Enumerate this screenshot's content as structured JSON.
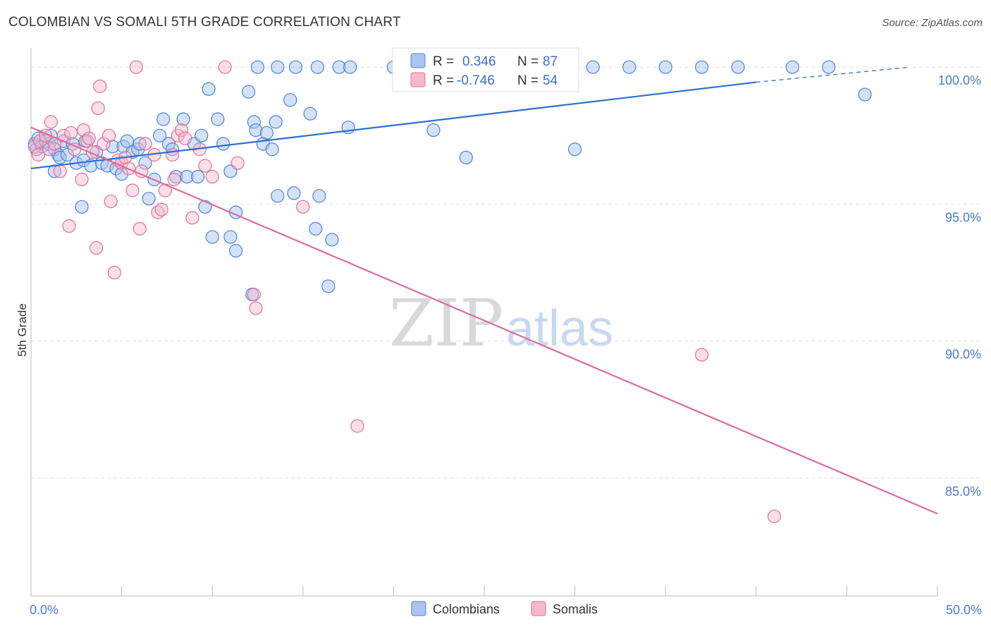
{
  "title": "COLOMBIAN VS SOMALI 5TH GRADE CORRELATION CHART",
  "source": "Source: ZipAtlas.com",
  "watermark": {
    "part1": "ZIP",
    "part2": "atlas"
  },
  "colors": {
    "blue": "#4a86d8",
    "blue_fill": "#a9c4ee",
    "blue_line": "#2f6fd0",
    "pink": "#e0709a",
    "pink_fill": "#f5b8cc",
    "pink_line": "#de6b98",
    "axis_label": "#4a7bd0",
    "grid": "#e2e2e2"
  },
  "legend": {
    "rows": [
      {
        "r_label": "R =",
        "r_value": "0.346",
        "n_label": "N =",
        "n_value": "87"
      },
      {
        "r_label": "R =",
        "r_value": "-0.746",
        "n_label": "N =",
        "n_value": "54"
      }
    ]
  },
  "bottom_legend": [
    "Colombians",
    "Somalis"
  ],
  "chart_data": {
    "type": "scatter",
    "title": "COLOMBIAN VS SOMALI 5TH GRADE CORRELATION CHART",
    "xlabel": "",
    "ylabel": "5th Grade",
    "xlim": [
      0,
      50
    ],
    "ylim": [
      80.7,
      100.7
    ],
    "x_tick_labels": [
      {
        "value": 0,
        "label": "0.0%"
      },
      {
        "value": 50,
        "label": "50.0%"
      }
    ],
    "y_tick_labels": [
      {
        "value": 100,
        "label": "100.0%"
      },
      {
        "value": 95,
        "label": "95.0%"
      },
      {
        "value": 90,
        "label": "90.0%"
      },
      {
        "value": 85,
        "label": "85.0%"
      }
    ],
    "x_minor_ticks": [
      0,
      5,
      10,
      15,
      20,
      25,
      30,
      35,
      40,
      45,
      50
    ],
    "series": [
      {
        "name": "Colombians",
        "r": 0.346,
        "n": 87,
        "trend": {
          "x0": 0,
          "y0": 96.3,
          "x1": 40,
          "y1": 99.45,
          "dash_to_x": 48.5,
          "dash_to_y": 100.0
        },
        "points": [
          [
            0.2,
            97.2
          ],
          [
            0.3,
            97.0
          ],
          [
            0.4,
            97.4
          ],
          [
            0.6,
            97.1
          ],
          [
            0.8,
            97.3
          ],
          [
            1.0,
            97.2
          ],
          [
            1.1,
            97.5
          ],
          [
            1.3,
            97.0
          ],
          [
            1.5,
            96.8
          ],
          [
            1.3,
            96.2
          ],
          [
            1.6,
            96.7
          ],
          [
            1.8,
            97.3
          ],
          [
            2.0,
            96.8
          ],
          [
            2.3,
            97.2
          ],
          [
            2.5,
            96.5
          ],
          [
            2.9,
            96.6
          ],
          [
            3.0,
            97.3
          ],
          [
            3.3,
            96.4
          ],
          [
            3.6,
            96.9
          ],
          [
            3.9,
            96.5
          ],
          [
            4.2,
            96.4
          ],
          [
            4.5,
            97.1
          ],
          [
            4.7,
            96.3
          ],
          [
            5.0,
            96.1
          ],
          [
            5.1,
            97.1
          ],
          [
            5.3,
            97.3
          ],
          [
            5.6,
            96.9
          ],
          [
            5.9,
            97.0
          ],
          [
            6.0,
            97.2
          ],
          [
            6.3,
            96.5
          ],
          [
            6.5,
            95.2
          ],
          [
            6.8,
            95.9
          ],
          [
            7.1,
            97.5
          ],
          [
            7.3,
            98.1
          ],
          [
            7.6,
            97.2
          ],
          [
            7.8,
            97.0
          ],
          [
            8.0,
            96.0
          ],
          [
            8.4,
            98.1
          ],
          [
            8.6,
            96.0
          ],
          [
            9.0,
            97.2
          ],
          [
            9.2,
            96.0
          ],
          [
            9.4,
            97.5
          ],
          [
            9.6,
            94.9
          ],
          [
            10.0,
            93.8
          ],
          [
            9.8,
            99.2
          ],
          [
            10.3,
            98.1
          ],
          [
            10.6,
            97.2
          ],
          [
            11.0,
            93.8
          ],
          [
            11.0,
            96.2
          ],
          [
            11.3,
            93.3
          ],
          [
            11.3,
            94.7
          ],
          [
            12.0,
            99.1
          ],
          [
            12.3,
            98.0
          ],
          [
            12.4,
            97.7
          ],
          [
            12.5,
            100.0
          ],
          [
            12.8,
            97.2
          ],
          [
            13.0,
            97.6
          ],
          [
            13.3,
            97.0
          ],
          [
            13.5,
            98.0
          ],
          [
            13.6,
            95.3
          ],
          [
            14.3,
            98.8
          ],
          [
            14.5,
            95.4
          ],
          [
            15.4,
            98.3
          ],
          [
            15.7,
            94.1
          ],
          [
            15.9,
            95.3
          ],
          [
            16.4,
            92.0
          ],
          [
            16.6,
            93.7
          ],
          [
            13.6,
            100.0
          ],
          [
            14.6,
            100.0
          ],
          [
            15.8,
            100.0
          ],
          [
            17.0,
            100.0
          ],
          [
            17.6,
            100.0
          ],
          [
            17.5,
            97.8
          ],
          [
            20.0,
            100.0
          ],
          [
            22.2,
            97.7
          ],
          [
            24.0,
            96.7
          ],
          [
            30.0,
            97.0
          ],
          [
            31.0,
            100.0
          ],
          [
            33.0,
            100.0
          ],
          [
            35.0,
            100.0
          ],
          [
            37.0,
            100.0
          ],
          [
            39.0,
            100.0
          ],
          [
            42.0,
            100.0
          ],
          [
            44.0,
            100.0
          ],
          [
            46.0,
            99.0
          ],
          [
            12.2,
            91.7
          ],
          [
            2.8,
            94.9
          ]
        ]
      },
      {
        "name": "Somalis",
        "r": -0.746,
        "n": 54,
        "trend": {
          "x0": 0,
          "y0": 97.8,
          "x1": 50,
          "y1": 83.7
        },
        "points": [
          [
            0.2,
            97.1
          ],
          [
            0.4,
            96.8
          ],
          [
            0.5,
            97.3
          ],
          [
            0.8,
            97.5
          ],
          [
            1.0,
            97.0
          ],
          [
            1.1,
            98.0
          ],
          [
            1.3,
            97.2
          ],
          [
            1.6,
            96.2
          ],
          [
            1.8,
            97.5
          ],
          [
            2.1,
            94.2
          ],
          [
            2.2,
            97.6
          ],
          [
            2.4,
            97.0
          ],
          [
            2.8,
            95.9
          ],
          [
            2.9,
            97.7
          ],
          [
            3.1,
            97.3
          ],
          [
            3.4,
            96.9
          ],
          [
            3.6,
            93.4
          ],
          [
            3.7,
            98.5
          ],
          [
            3.8,
            99.3
          ],
          [
            4.0,
            97.2
          ],
          [
            4.3,
            97.5
          ],
          [
            4.4,
            95.1
          ],
          [
            4.6,
            92.5
          ],
          [
            4.8,
            96.6
          ],
          [
            5.0,
            96.5
          ],
          [
            5.2,
            96.7
          ],
          [
            5.4,
            96.3
          ],
          [
            5.6,
            95.5
          ],
          [
            5.8,
            100.0
          ],
          [
            6.0,
            94.1
          ],
          [
            6.3,
            97.2
          ],
          [
            6.8,
            96.8
          ],
          [
            7.0,
            94.7
          ],
          [
            7.2,
            94.8
          ],
          [
            7.4,
            95.5
          ],
          [
            7.8,
            96.8
          ],
          [
            8.1,
            97.5
          ],
          [
            8.3,
            97.7
          ],
          [
            8.5,
            97.4
          ],
          [
            8.9,
            94.5
          ],
          [
            9.3,
            97.0
          ],
          [
            9.6,
            96.4
          ],
          [
            10.0,
            96.0
          ],
          [
            10.7,
            100.0
          ],
          [
            11.4,
            96.5
          ],
          [
            12.3,
            91.7
          ],
          [
            12.4,
            91.2
          ],
          [
            15.0,
            94.9
          ],
          [
            7.9,
            95.9
          ],
          [
            18.0,
            86.9
          ],
          [
            37.0,
            89.5
          ],
          [
            41.0,
            83.6
          ],
          [
            3.2,
            97.4
          ],
          [
            6.1,
            96.2
          ]
        ]
      }
    ]
  }
}
